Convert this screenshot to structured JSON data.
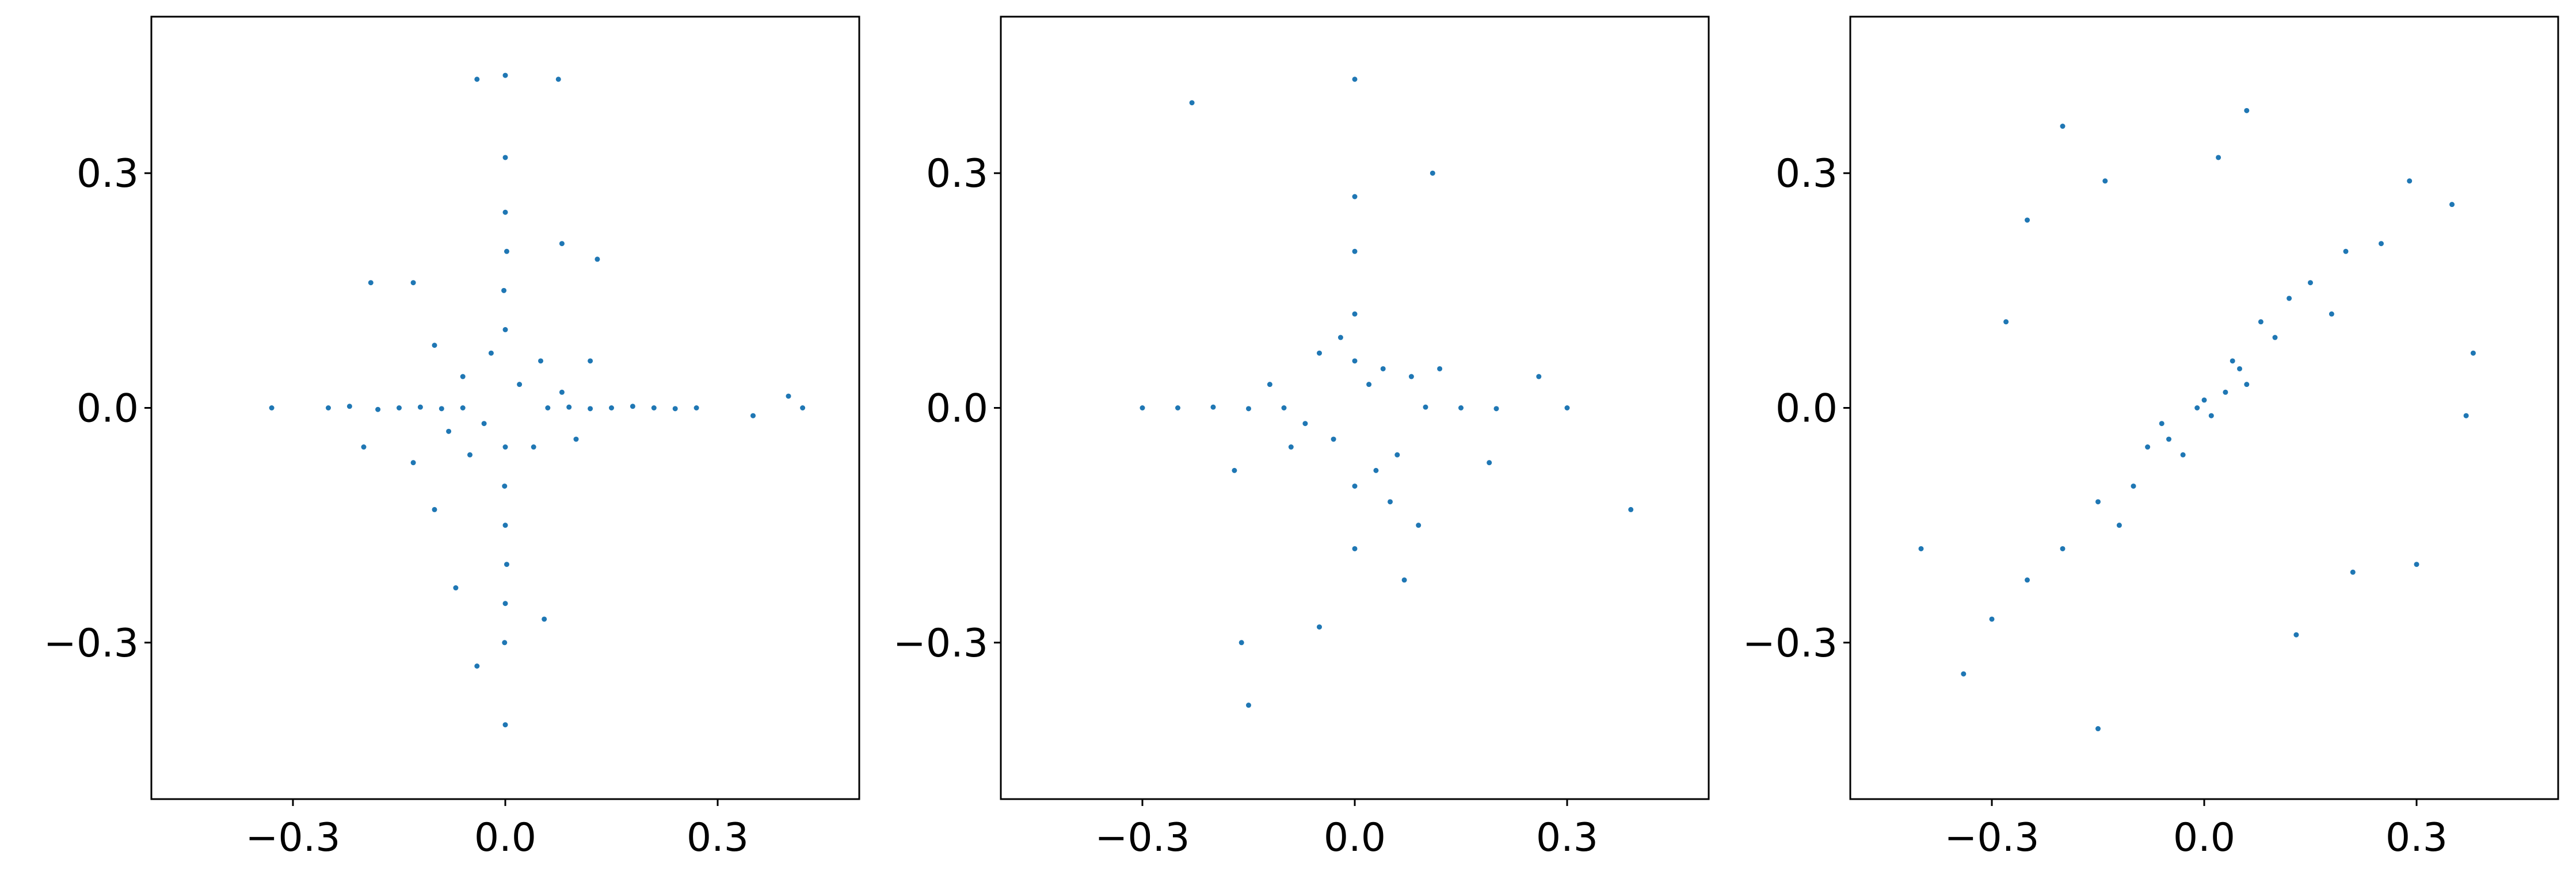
{
  "chart_data": [
    {
      "type": "scatter",
      "color": "#1f77b4",
      "x": [
        -0.04,
        0,
        0.075,
        -0.33,
        0.42,
        0.4,
        0.35,
        -0.13,
        -0.19,
        0.13,
        0.08,
        -0.04,
        0,
        0.055,
        -0.07,
        0,
        -0.2,
        -0.25,
        -0.22,
        -0.18,
        -0.15,
        -0.12,
        -0.09,
        -0.06,
        0.06,
        0.09,
        0.12,
        0.15,
        0.18,
        0.21,
        0.24,
        0.27,
        0,
        0.002,
        -0.002,
        0,
        0,
        -0.001,
        0,
        0.002,
        0,
        -0.001,
        0.02,
        -0.03,
        0.05,
        -0.06,
        0.04,
        -0.05,
        0.08,
        -0.08,
        -0.1,
        0.1,
        0.12,
        -0.13,
        -0.1,
        -0.02
      ],
      "values": [
        0.42,
        0.425,
        0.42,
        0,
        0,
        0.015,
        -0.01,
        0.16,
        0.16,
        0.19,
        0.21,
        -0.33,
        -0.405,
        -0.27,
        -0.23,
        0.32,
        -0.05,
        0,
        0.002,
        -0.002,
        0,
        0.001,
        -0.001,
        0,
        0,
        0.001,
        -0.001,
        0,
        0.002,
        0,
        -0.001,
        0,
        0.25,
        0.2,
        0.15,
        0.1,
        -0.05,
        -0.1,
        -0.15,
        -0.2,
        -0.25,
        -0.3,
        0.03,
        -0.02,
        0.06,
        0.04,
        -0.05,
        -0.06,
        0.02,
        -0.03,
        0.08,
        -0.04,
        0.06,
        -0.07,
        -0.13,
        0.07
      ],
      "xlim": [
        -0.5,
        0.5
      ],
      "ylim": [
        -0.5,
        0.5
      ],
      "xticks": [
        {
          "value": -0.3,
          "label": "−0.3"
        },
        {
          "value": 0,
          "label": "0.0"
        },
        0.3
      ],
      "yticks": [
        {
          "value": -0.3,
          "label": "−0.3"
        },
        {
          "value": 0,
          "label": "0.0"
        },
        0.3
      ]
    },
    {
      "type": "scatter",
      "color": "#1f77b4",
      "x": [
        -0.23,
        0,
        0.11,
        0.39,
        -0.16,
        -0.15,
        0.3,
        -0.3,
        0.26,
        0.19,
        0.07,
        -0.05,
        0,
        -0.25,
        -0.2,
        -0.15,
        -0.1,
        0.1,
        0.15,
        0.2,
        0,
        0,
        0,
        0,
        0,
        0.02,
        -0.03,
        0.04,
        -0.05,
        0.06,
        -0.07,
        0.03,
        -0.02,
        0.08,
        -0.09,
        0.05,
        -0.17,
        0.12,
        -0.12,
        0.09
      ],
      "values": [
        0.39,
        0.42,
        0.3,
        -0.13,
        -0.3,
        -0.38,
        0,
        0,
        0.04,
        -0.07,
        -0.22,
        -0.28,
        0.27,
        0,
        0.001,
        -0.001,
        0,
        0.001,
        0,
        -0.001,
        0.2,
        0.12,
        -0.1,
        -0.18,
        0.06,
        0.03,
        -0.04,
        0.05,
        0.07,
        -0.06,
        -0.02,
        -0.08,
        0.09,
        0.04,
        -0.05,
        -0.12,
        -0.08,
        0.05,
        0.03,
        -0.15
      ],
      "xlim": [
        -0.5,
        0.5
      ],
      "ylim": [
        -0.5,
        0.5
      ],
      "xticks": [
        {
          "value": -0.3,
          "label": "−0.3"
        },
        {
          "value": 0,
          "label": "0.0"
        },
        0.3
      ],
      "yticks": [
        {
          "value": -0.3,
          "label": "−0.3"
        },
        {
          "value": 0,
          "label": "0.0"
        },
        0.3
      ]
    },
    {
      "type": "scatter",
      "color": "#1f77b4",
      "x": [
        -0.2,
        0.06,
        0.02,
        -0.4,
        -0.34,
        -0.15,
        0.38,
        0.37,
        0.35,
        0.29,
        0.3,
        -0.28,
        -0.25,
        -0.14,
        0.13,
        0.21,
        -0.3,
        -0.25,
        -0.2,
        -0.15,
        -0.1,
        -0.05,
        0,
        0.05,
        0.1,
        0.15,
        0.2,
        -0.03,
        0.03,
        0.08,
        -0.08,
        0.01,
        -0.01,
        0.12,
        0.18,
        0.06,
        -0.12,
        0.25,
        -0.06,
        0.04
      ],
      "values": [
        0.36,
        0.38,
        0.32,
        -0.18,
        -0.34,
        -0.41,
        0.07,
        -0.01,
        0.26,
        0.29,
        -0.2,
        0.11,
        0.24,
        0.29,
        -0.29,
        -0.21,
        -0.27,
        -0.22,
        -0.18,
        -0.12,
        -0.1,
        -0.04,
        0.01,
        0.05,
        0.09,
        0.16,
        0.2,
        -0.06,
        0.02,
        0.11,
        -0.05,
        -0.01,
        0,
        0.14,
        0.12,
        0.03,
        -0.15,
        0.21,
        -0.02,
        0.06
      ],
      "xlim": [
        -0.5,
        0.5
      ],
      "ylim": [
        -0.5,
        0.5
      ],
      "xticks": [
        {
          "value": -0.3,
          "label": "−0.3"
        },
        {
          "value": 0,
          "label": "0.0"
        },
        0.3
      ],
      "yticks": [
        {
          "value": -0.3,
          "label": "−0.3"
        },
        {
          "value": 0,
          "label": "0.0"
        },
        0.3
      ]
    }
  ]
}
